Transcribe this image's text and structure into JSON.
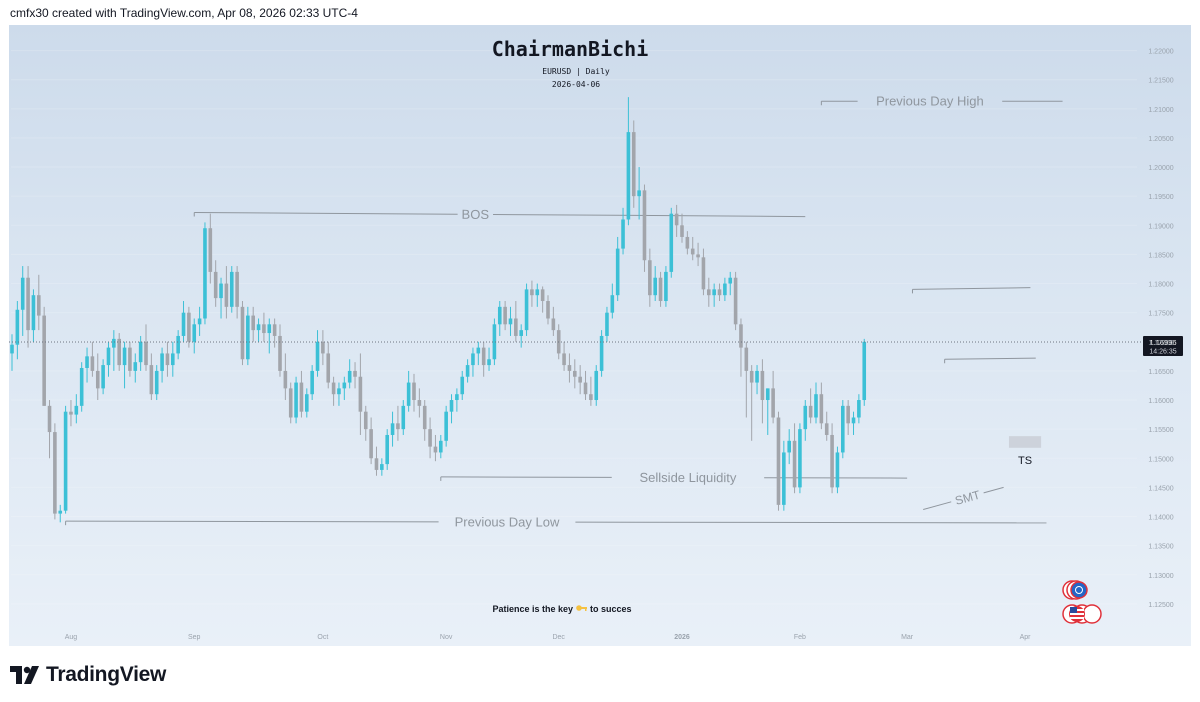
{
  "header": {
    "text": "cmfx30 created with TradingView.com, Apr 08, 2026 02:33 UTC-4"
  },
  "brand": {
    "name": "TradingView"
  },
  "colors": {
    "bull": "#3cc0d6",
    "bear": "#a2a5ab",
    "annotation": "#8f969e",
    "price_tag_bg": "#131722"
  },
  "chart_data": {
    "type": "candlestick",
    "title": "ChairmanBichi",
    "subtitle": "EURUSD | Daily",
    "date_text": "2026-04-06",
    "yaxis_ticks": [
      "1.12500",
      "1.13000",
      "1.13500",
      "1.14000",
      "1.14500",
      "1.15000",
      "1.15500",
      "1.16000",
      "1.16500",
      "1.17000",
      "1.17500",
      "1.18000",
      "1.18500",
      "1.19000",
      "1.19500",
      "1.20000",
      "1.20500",
      "1.21000",
      "1.21500",
      "1.22000"
    ],
    "ylim": [
      1.12,
      1.2213
    ],
    "xaxis_labels": [
      {
        "text": "Aug",
        "bar": 11
      },
      {
        "text": "Sep",
        "bar": 34
      },
      {
        "text": "Oct",
        "bar": 58
      },
      {
        "text": "Nov",
        "bar": 81
      },
      {
        "text": "Dec",
        "bar": 102
      },
      {
        "text": "2026",
        "bar": 125
      },
      {
        "text": "Feb",
        "bar": 147
      },
      {
        "text": "Mar",
        "bar": 167
      },
      {
        "text": "Apr",
        "bar": 189
      }
    ],
    "last_price": {
      "value": "1.16996",
      "countdown": "14:26:35",
      "y": 1.16996
    },
    "candles": [
      {
        "o": 1.168,
        "h": 1.1713,
        "l": 1.165,
        "c": 1.1695
      },
      {
        "o": 1.1695,
        "h": 1.177,
        "l": 1.167,
        "c": 1.1755
      },
      {
        "o": 1.1755,
        "h": 1.183,
        "l": 1.171,
        "c": 1.181
      },
      {
        "o": 1.181,
        "h": 1.183,
        "l": 1.169,
        "c": 1.172
      },
      {
        "o": 1.172,
        "h": 1.179,
        "l": 1.17,
        "c": 1.178
      },
      {
        "o": 1.178,
        "h": 1.1815,
        "l": 1.172,
        "c": 1.1745
      },
      {
        "o": 1.1745,
        "h": 1.176,
        "l": 1.159,
        "c": 1.159
      },
      {
        "o": 1.159,
        "h": 1.16,
        "l": 1.15,
        "c": 1.1545
      },
      {
        "o": 1.1545,
        "h": 1.156,
        "l": 1.1395,
        "c": 1.1405
      },
      {
        "o": 1.1405,
        "h": 1.142,
        "l": 1.139,
        "c": 1.141
      },
      {
        "o": 1.141,
        "h": 1.159,
        "l": 1.1405,
        "c": 1.158
      },
      {
        "o": 1.158,
        "h": 1.16,
        "l": 1.1555,
        "c": 1.1575
      },
      {
        "o": 1.1575,
        "h": 1.161,
        "l": 1.156,
        "c": 1.159
      },
      {
        "o": 1.159,
        "h": 1.1665,
        "l": 1.158,
        "c": 1.1655
      },
      {
        "o": 1.1655,
        "h": 1.169,
        "l": 1.163,
        "c": 1.1675
      },
      {
        "o": 1.1675,
        "h": 1.17,
        "l": 1.164,
        "c": 1.165
      },
      {
        "o": 1.165,
        "h": 1.168,
        "l": 1.16,
        "c": 1.162
      },
      {
        "o": 1.162,
        "h": 1.167,
        "l": 1.161,
        "c": 1.166
      },
      {
        "o": 1.166,
        "h": 1.17,
        "l": 1.164,
        "c": 1.169
      },
      {
        "o": 1.169,
        "h": 1.172,
        "l": 1.165,
        "c": 1.1705
      },
      {
        "o": 1.1705,
        "h": 1.1715,
        "l": 1.165,
        "c": 1.166
      },
      {
        "o": 1.166,
        "h": 1.17,
        "l": 1.162,
        "c": 1.169
      },
      {
        "o": 1.169,
        "h": 1.17,
        "l": 1.164,
        "c": 1.165
      },
      {
        "o": 1.165,
        "h": 1.168,
        "l": 1.163,
        "c": 1.1665
      },
      {
        "o": 1.1665,
        "h": 1.171,
        "l": 1.165,
        "c": 1.17
      },
      {
        "o": 1.17,
        "h": 1.173,
        "l": 1.165,
        "c": 1.166
      },
      {
        "o": 1.166,
        "h": 1.168,
        "l": 1.16,
        "c": 1.161
      },
      {
        "o": 1.161,
        "h": 1.166,
        "l": 1.16,
        "c": 1.165
      },
      {
        "o": 1.165,
        "h": 1.169,
        "l": 1.163,
        "c": 1.168
      },
      {
        "o": 1.168,
        "h": 1.17,
        "l": 1.164,
        "c": 1.166
      },
      {
        "o": 1.166,
        "h": 1.17,
        "l": 1.164,
        "c": 1.168
      },
      {
        "o": 1.168,
        "h": 1.172,
        "l": 1.167,
        "c": 1.171
      },
      {
        "o": 1.171,
        "h": 1.177,
        "l": 1.17,
        "c": 1.175
      },
      {
        "o": 1.175,
        "h": 1.176,
        "l": 1.169,
        "c": 1.17
      },
      {
        "o": 1.17,
        "h": 1.174,
        "l": 1.168,
        "c": 1.173
      },
      {
        "o": 1.173,
        "h": 1.176,
        "l": 1.171,
        "c": 1.174
      },
      {
        "o": 1.174,
        "h": 1.1905,
        "l": 1.173,
        "c": 1.1895
      },
      {
        "o": 1.1895,
        "h": 1.192,
        "l": 1.18,
        "c": 1.182
      },
      {
        "o": 1.182,
        "h": 1.184,
        "l": 1.176,
        "c": 1.1775
      },
      {
        "o": 1.1775,
        "h": 1.181,
        "l": 1.174,
        "c": 1.18
      },
      {
        "o": 1.18,
        "h": 1.183,
        "l": 1.174,
        "c": 1.176
      },
      {
        "o": 1.176,
        "h": 1.183,
        "l": 1.175,
        "c": 1.182
      },
      {
        "o": 1.182,
        "h": 1.183,
        "l": 1.174,
        "c": 1.176
      },
      {
        "o": 1.176,
        "h": 1.177,
        "l": 1.166,
        "c": 1.167
      },
      {
        "o": 1.167,
        "h": 1.176,
        "l": 1.166,
        "c": 1.1745
      },
      {
        "o": 1.1745,
        "h": 1.176,
        "l": 1.17,
        "c": 1.172
      },
      {
        "o": 1.172,
        "h": 1.174,
        "l": 1.17,
        "c": 1.173
      },
      {
        "o": 1.173,
        "h": 1.175,
        "l": 1.17,
        "c": 1.1715
      },
      {
        "o": 1.1715,
        "h": 1.174,
        "l": 1.168,
        "c": 1.173
      },
      {
        "o": 1.173,
        "h": 1.174,
        "l": 1.169,
        "c": 1.171
      },
      {
        "o": 1.171,
        "h": 1.173,
        "l": 1.164,
        "c": 1.165
      },
      {
        "o": 1.165,
        "h": 1.168,
        "l": 1.16,
        "c": 1.162
      },
      {
        "o": 1.162,
        "h": 1.163,
        "l": 1.156,
        "c": 1.157
      },
      {
        "o": 1.157,
        "h": 1.164,
        "l": 1.156,
        "c": 1.163
      },
      {
        "o": 1.163,
        "h": 1.165,
        "l": 1.157,
        "c": 1.158
      },
      {
        "o": 1.158,
        "h": 1.162,
        "l": 1.157,
        "c": 1.161
      },
      {
        "o": 1.161,
        "h": 1.166,
        "l": 1.16,
        "c": 1.165
      },
      {
        "o": 1.165,
        "h": 1.172,
        "l": 1.164,
        "c": 1.17
      },
      {
        "o": 1.17,
        "h": 1.172,
        "l": 1.166,
        "c": 1.168
      },
      {
        "o": 1.168,
        "h": 1.17,
        "l": 1.162,
        "c": 1.163
      },
      {
        "o": 1.163,
        "h": 1.164,
        "l": 1.159,
        "c": 1.161
      },
      {
        "o": 1.161,
        "h": 1.163,
        "l": 1.159,
        "c": 1.162
      },
      {
        "o": 1.162,
        "h": 1.164,
        "l": 1.16,
        "c": 1.163
      },
      {
        "o": 1.163,
        "h": 1.167,
        "l": 1.162,
        "c": 1.165
      },
      {
        "o": 1.165,
        "h": 1.1665,
        "l": 1.162,
        "c": 1.164
      },
      {
        "o": 1.164,
        "h": 1.168,
        "l": 1.154,
        "c": 1.158
      },
      {
        "o": 1.158,
        "h": 1.159,
        "l": 1.153,
        "c": 1.155
      },
      {
        "o": 1.155,
        "h": 1.157,
        "l": 1.149,
        "c": 1.15
      },
      {
        "o": 1.15,
        "h": 1.152,
        "l": 1.147,
        "c": 1.148
      },
      {
        "o": 1.148,
        "h": 1.15,
        "l": 1.147,
        "c": 1.149
      },
      {
        "o": 1.149,
        "h": 1.155,
        "l": 1.148,
        "c": 1.154
      },
      {
        "o": 1.154,
        "h": 1.158,
        "l": 1.152,
        "c": 1.156
      },
      {
        "o": 1.156,
        "h": 1.159,
        "l": 1.153,
        "c": 1.155
      },
      {
        "o": 1.155,
        "h": 1.16,
        "l": 1.154,
        "c": 1.159
      },
      {
        "o": 1.159,
        "h": 1.165,
        "l": 1.158,
        "c": 1.163
      },
      {
        "o": 1.163,
        "h": 1.1645,
        "l": 1.158,
        "c": 1.16
      },
      {
        "o": 1.16,
        "h": 1.162,
        "l": 1.157,
        "c": 1.159
      },
      {
        "o": 1.159,
        "h": 1.16,
        "l": 1.153,
        "c": 1.155
      },
      {
        "o": 1.155,
        "h": 1.157,
        "l": 1.15,
        "c": 1.152
      },
      {
        "o": 1.152,
        "h": 1.154,
        "l": 1.1495,
        "c": 1.151
      },
      {
        "o": 1.151,
        "h": 1.154,
        "l": 1.15,
        "c": 1.153
      },
      {
        "o": 1.153,
        "h": 1.159,
        "l": 1.152,
        "c": 1.158
      },
      {
        "o": 1.158,
        "h": 1.161,
        "l": 1.156,
        "c": 1.16
      },
      {
        "o": 1.16,
        "h": 1.162,
        "l": 1.158,
        "c": 1.161
      },
      {
        "o": 1.161,
        "h": 1.165,
        "l": 1.16,
        "c": 1.164
      },
      {
        "o": 1.164,
        "h": 1.167,
        "l": 1.163,
        "c": 1.166
      },
      {
        "o": 1.166,
        "h": 1.169,
        "l": 1.164,
        "c": 1.168
      },
      {
        "o": 1.168,
        "h": 1.17,
        "l": 1.166,
        "c": 1.169
      },
      {
        "o": 1.169,
        "h": 1.17,
        "l": 1.164,
        "c": 1.166
      },
      {
        "o": 1.166,
        "h": 1.169,
        "l": 1.165,
        "c": 1.167
      },
      {
        "o": 1.167,
        "h": 1.174,
        "l": 1.166,
        "c": 1.173
      },
      {
        "o": 1.173,
        "h": 1.177,
        "l": 1.171,
        "c": 1.176
      },
      {
        "o": 1.176,
        "h": 1.177,
        "l": 1.172,
        "c": 1.173
      },
      {
        "o": 1.173,
        "h": 1.176,
        "l": 1.171,
        "c": 1.174
      },
      {
        "o": 1.174,
        "h": 1.177,
        "l": 1.17,
        "c": 1.171
      },
      {
        "o": 1.171,
        "h": 1.173,
        "l": 1.169,
        "c": 1.172
      },
      {
        "o": 1.172,
        "h": 1.18,
        "l": 1.171,
        "c": 1.179
      },
      {
        "o": 1.179,
        "h": 1.1805,
        "l": 1.176,
        "c": 1.178
      },
      {
        "o": 1.178,
        "h": 1.18,
        "l": 1.176,
        "c": 1.179
      },
      {
        "o": 1.179,
        "h": 1.1795,
        "l": 1.175,
        "c": 1.177
      },
      {
        "o": 1.177,
        "h": 1.178,
        "l": 1.173,
        "c": 1.174
      },
      {
        "o": 1.174,
        "h": 1.176,
        "l": 1.171,
        "c": 1.172
      },
      {
        "o": 1.172,
        "h": 1.173,
        "l": 1.167,
        "c": 1.168
      },
      {
        "o": 1.168,
        "h": 1.17,
        "l": 1.165,
        "c": 1.166
      },
      {
        "o": 1.166,
        "h": 1.168,
        "l": 1.163,
        "c": 1.165
      },
      {
        "o": 1.165,
        "h": 1.167,
        "l": 1.162,
        "c": 1.164
      },
      {
        "o": 1.164,
        "h": 1.166,
        "l": 1.161,
        "c": 1.163
      },
      {
        "o": 1.163,
        "h": 1.165,
        "l": 1.16,
        "c": 1.161
      },
      {
        "o": 1.161,
        "h": 1.164,
        "l": 1.159,
        "c": 1.16
      },
      {
        "o": 1.16,
        "h": 1.166,
        "l": 1.159,
        "c": 1.165
      },
      {
        "o": 1.165,
        "h": 1.172,
        "l": 1.164,
        "c": 1.171
      },
      {
        "o": 1.171,
        "h": 1.176,
        "l": 1.17,
        "c": 1.175
      },
      {
        "o": 1.175,
        "h": 1.18,
        "l": 1.174,
        "c": 1.178
      },
      {
        "o": 1.178,
        "h": 1.188,
        "l": 1.177,
        "c": 1.186
      },
      {
        "o": 1.186,
        "h": 1.193,
        "l": 1.185,
        "c": 1.191
      },
      {
        "o": 1.191,
        "h": 1.212,
        "l": 1.19,
        "c": 1.206
      },
      {
        "o": 1.206,
        "h": 1.208,
        "l": 1.193,
        "c": 1.195
      },
      {
        "o": 1.195,
        "h": 1.2,
        "l": 1.191,
        "c": 1.196
      },
      {
        "o": 1.196,
        "h": 1.197,
        "l": 1.182,
        "c": 1.184
      },
      {
        "o": 1.184,
        "h": 1.186,
        "l": 1.176,
        "c": 1.178
      },
      {
        "o": 1.178,
        "h": 1.183,
        "l": 1.177,
        "c": 1.181
      },
      {
        "o": 1.181,
        "h": 1.182,
        "l": 1.176,
        "c": 1.177
      },
      {
        "o": 1.177,
        "h": 1.183,
        "l": 1.176,
        "c": 1.182
      },
      {
        "o": 1.182,
        "h": 1.193,
        "l": 1.181,
        "c": 1.192
      },
      {
        "o": 1.192,
        "h": 1.1935,
        "l": 1.188,
        "c": 1.19
      },
      {
        "o": 1.19,
        "h": 1.192,
        "l": 1.187,
        "c": 1.188
      },
      {
        "o": 1.188,
        "h": 1.189,
        "l": 1.185,
        "c": 1.186
      },
      {
        "o": 1.186,
        "h": 1.188,
        "l": 1.184,
        "c": 1.185
      },
      {
        "o": 1.185,
        "h": 1.187,
        "l": 1.183,
        "c": 1.1845
      },
      {
        "o": 1.1845,
        "h": 1.186,
        "l": 1.178,
        "c": 1.179
      },
      {
        "o": 1.179,
        "h": 1.181,
        "l": 1.176,
        "c": 1.178
      },
      {
        "o": 1.178,
        "h": 1.18,
        "l": 1.176,
        "c": 1.179
      },
      {
        "o": 1.179,
        "h": 1.18,
        "l": 1.177,
        "c": 1.178
      },
      {
        "o": 1.178,
        "h": 1.181,
        "l": 1.177,
        "c": 1.18
      },
      {
        "o": 1.18,
        "h": 1.182,
        "l": 1.178,
        "c": 1.181
      },
      {
        "o": 1.181,
        "h": 1.182,
        "l": 1.172,
        "c": 1.173
      },
      {
        "o": 1.173,
        "h": 1.174,
        "l": 1.164,
        "c": 1.169
      },
      {
        "o": 1.169,
        "h": 1.17,
        "l": 1.157,
        "c": 1.165
      },
      {
        "o": 1.165,
        "h": 1.166,
        "l": 1.153,
        "c": 1.163
      },
      {
        "o": 1.163,
        "h": 1.166,
        "l": 1.161,
        "c": 1.165
      },
      {
        "o": 1.165,
        "h": 1.167,
        "l": 1.156,
        "c": 1.16
      },
      {
        "o": 1.16,
        "h": 1.162,
        "l": 1.154,
        "c": 1.162
      },
      {
        "o": 1.162,
        "h": 1.165,
        "l": 1.156,
        "c": 1.157
      },
      {
        "o": 1.157,
        "h": 1.158,
        "l": 1.141,
        "c": 1.142
      },
      {
        "o": 1.142,
        "h": 1.153,
        "l": 1.141,
        "c": 1.151
      },
      {
        "o": 1.151,
        "h": 1.155,
        "l": 1.149,
        "c": 1.153
      },
      {
        "o": 1.153,
        "h": 1.156,
        "l": 1.144,
        "c": 1.145
      },
      {
        "o": 1.145,
        "h": 1.156,
        "l": 1.144,
        "c": 1.155
      },
      {
        "o": 1.155,
        "h": 1.16,
        "l": 1.153,
        "c": 1.159
      },
      {
        "o": 1.159,
        "h": 1.162,
        "l": 1.156,
        "c": 1.157
      },
      {
        "o": 1.157,
        "h": 1.163,
        "l": 1.156,
        "c": 1.161
      },
      {
        "o": 1.161,
        "h": 1.163,
        "l": 1.155,
        "c": 1.156
      },
      {
        "o": 1.156,
        "h": 1.158,
        "l": 1.153,
        "c": 1.154
      },
      {
        "o": 1.154,
        "h": 1.156,
        "l": 1.144,
        "c": 1.145
      },
      {
        "o": 1.145,
        "h": 1.152,
        "l": 1.144,
        "c": 1.151
      },
      {
        "o": 1.151,
        "h": 1.16,
        "l": 1.15,
        "c": 1.159
      },
      {
        "o": 1.159,
        "h": 1.16,
        "l": 1.154,
        "c": 1.156
      },
      {
        "o": 1.156,
        "h": 1.158,
        "l": 1.154,
        "c": 1.157
      },
      {
        "o": 1.157,
        "h": 1.161,
        "l": 1.156,
        "c": 1.16
      },
      {
        "o": 1.16,
        "h": 1.1705,
        "l": 1.159,
        "c": 1.17
      }
    ],
    "annotations": [
      {
        "label": "Previous Day High",
        "type": "hline",
        "x1": 151,
        "x2": 196,
        "y": 1.2113,
        "label_at": 0.45
      },
      {
        "label": "BOS",
        "type": "hline",
        "x1": 34,
        "x2": 148,
        "y": 1.1922,
        "y2": 1.1915,
        "label_at": 0.46
      },
      {
        "label": "Sellside Liquidity",
        "type": "hline",
        "x1": 80,
        "x2": 167,
        "y": 1.1468,
        "y2": 1.1466,
        "label_at": 0.53
      },
      {
        "label": "Previous Day Low",
        "type": "hline",
        "x1": 10,
        "x2": 193,
        "y": 1.1392,
        "y2": 1.1389,
        "label_at": 0.45
      },
      {
        "label": "SMT",
        "type": "trend",
        "x1": 170,
        "y1": 1.1412,
        "x2": 185,
        "y2": 1.145,
        "label_at": 0.55
      },
      {
        "label": "",
        "type": "hline",
        "x1": 168,
        "x2": 190,
        "y": 1.179,
        "y2": 1.1793
      },
      {
        "label": "",
        "type": "hline",
        "x1": 174,
        "x2": 191,
        "y": 1.167,
        "y2": 1.1672
      }
    ],
    "ts_label": "TS",
    "ts_box": {
      "x1": 186,
      "x2": 192,
      "y_top": 1.1538,
      "y_bottom": 1.1518
    },
    "caption": {
      "before": "Patience is the key",
      "after": "to succes"
    }
  }
}
